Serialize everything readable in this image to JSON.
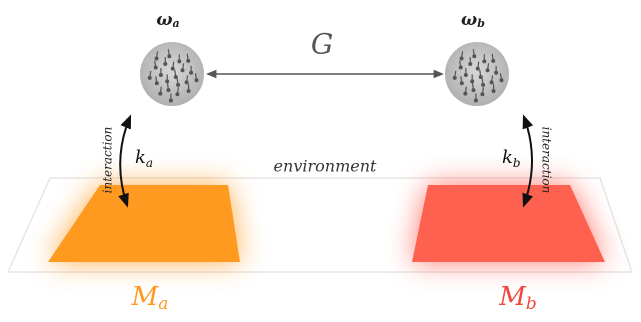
{
  "nodes": [
    {
      "symbol": "ω",
      "subscript": "a"
    },
    {
      "symbol": "ω",
      "subscript": "b"
    }
  ],
  "coupling": "G",
  "interactions": [
    {
      "label": "interaction",
      "rate": {
        "symbol": "k",
        "subscript": "a"
      }
    },
    {
      "label": "interaction",
      "rate": {
        "symbol": "k",
        "subscript": "b"
      }
    }
  ],
  "environment": "environment",
  "media": [
    {
      "symbol": "M",
      "subscript": "a"
    },
    {
      "symbol": "M",
      "subscript": "b"
    }
  ]
}
